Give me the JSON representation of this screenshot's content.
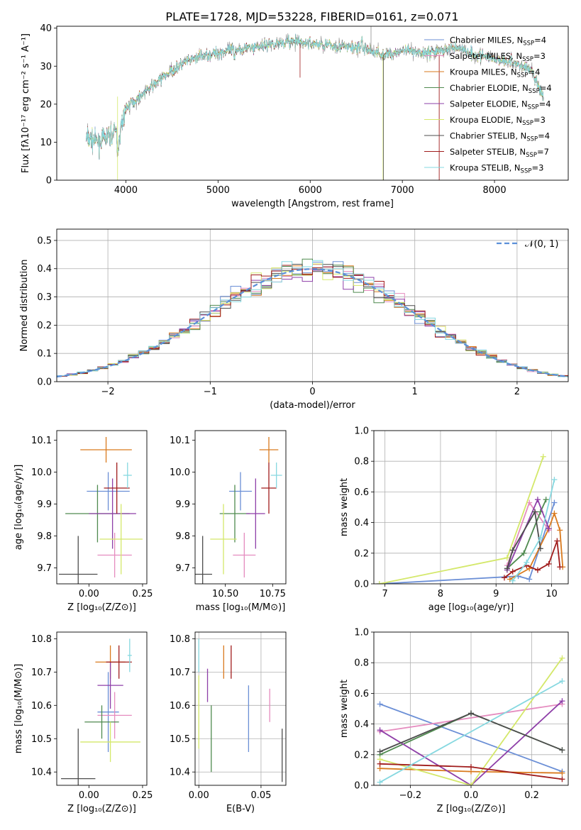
{
  "page_title": "PLATE=1728, MJD=53228, FIBERID=0161, z=0.071",
  "palette": {
    "chabrier_miles": "#6b8fd6",
    "salpeter_miles": "#e58cbf",
    "kroupa_miles": "#d97a1e",
    "chabrier_elodie": "#4f8a4f",
    "salpeter_elodie": "#8e3fa8",
    "kroupa_elodie": "#d4e86a",
    "chabrier_stelib": "#4d4d4d",
    "salpeter_stelib": "#a01c1c",
    "kroupa_stelib": "#86d8e0",
    "spectrum_gray": "#8c8c8c"
  },
  "chart_data": [
    {
      "id": "spectrum",
      "type": "line",
      "title": "PLATE=1728, MJD=53228, FIBERID=0161, z=0.071",
      "xlabel": "wavelength [Angstrom, rest frame]",
      "ylabel": "Flux [fλ10⁻¹⁷ erg cm⁻² s⁻¹ A⁻¹]",
      "xlim": [
        3250,
        8800
      ],
      "ylim": [
        0,
        40.5
      ],
      "xticks": [
        4000,
        5000,
        6000,
        7000,
        8000
      ],
      "yticks": [
        0,
        10,
        20,
        30,
        40
      ],
      "continuum_x": [
        3570,
        3700,
        3850,
        3950,
        4000,
        4100,
        4200,
        4400,
        4600,
        4800,
        5000,
        5200,
        5400,
        5600,
        5800,
        6000,
        6200,
        6400,
        6600,
        6800,
        7000,
        7200,
        7400,
        7600,
        7800,
        8000,
        8200,
        8400,
        8530
      ],
      "continuum_y": [
        11,
        10,
        12,
        14,
        19,
        21,
        23,
        27,
        30.5,
        32.5,
        33.5,
        34.5,
        35,
        36,
        36.5,
        36,
        35.5,
        35,
        34.5,
        33,
        34,
        33.5,
        34,
        35,
        33,
        32,
        31,
        29,
        22
      ],
      "legend": {
        "placement": "top-right",
        "entries": [
          {
            "label": "Chabrier MILES, N",
            "sub": "SSP",
            "suffix": "=4",
            "color": "chabrier_miles"
          },
          {
            "label": "Salpeter MILES, N",
            "sub": "SSP",
            "suffix": "=3",
            "color": "salpeter_miles"
          },
          {
            "label": "Kroupa MILES, N",
            "sub": "SSP",
            "suffix": "=4",
            "color": "kroupa_miles"
          },
          {
            "label": "Chabrier ELODIE, N",
            "sub": "SSP",
            "suffix": "=4",
            "color": "chabrier_elodie"
          },
          {
            "label": "Salpeter ELODIE, N",
            "sub": "SSP",
            "suffix": "=4",
            "color": "salpeter_elodie"
          },
          {
            "label": "Kroupa ELODIE, N",
            "sub": "SSP",
            "suffix": "=3",
            "color": "kroupa_elodie"
          },
          {
            "label": "Chabrier STELIB, N",
            "sub": "SSP",
            "suffix": "=4",
            "color": "chabrier_stelib"
          },
          {
            "label": "Salpeter STELIB, N",
            "sub": "SSP",
            "suffix": "=7",
            "color": "salpeter_stelib"
          },
          {
            "label": "Kroupa STELIB, N",
            "sub": "SSP",
            "suffix": "=3",
            "color": "kroupa_stelib"
          }
        ]
      }
    },
    {
      "id": "residuals",
      "type": "line",
      "xlabel": "(data-model)/error",
      "ylabel": "Normed distribution",
      "xlim": [
        -2.5,
        2.5
      ],
      "ylim": [
        0,
        0.54
      ],
      "xticks": [
        -2,
        -1,
        0,
        1,
        2
      ],
      "xtick_labels": [
        "−2",
        "−1",
        "0",
        "1",
        "2"
      ],
      "yticks": [
        0,
        0.1,
        0.2,
        0.3,
        0.4,
        0.5
      ],
      "ytick_labels": [
        "0.0",
        "0.1",
        "0.2",
        "0.3",
        "0.4",
        "0.5"
      ],
      "grid": true,
      "bin_width": 0.1,
      "gaussian_label": "𝒩(0, 1)",
      "legend_placement": "top-right"
    },
    {
      "id": "age-vs-z",
      "type": "scatter",
      "xlabel": "Z [log₁₀(Z/Z⊙)]",
      "ylabel": "age  [log₁₀(age/yr)]",
      "xlim": [
        -0.15,
        0.27
      ],
      "ylim": [
        9.65,
        10.13
      ],
      "xticks": [
        0,
        0.25
      ],
      "xtick_labels": [
        "0.00",
        "0.25"
      ],
      "yticks": [
        9.7,
        9.8,
        9.9,
        10.0,
        10.1
      ],
      "ytick_labels": [
        "9.7",
        "9.8",
        "9.9",
        "10.0",
        "10.1"
      ],
      "points": [
        {
          "color": "chabrier_miles",
          "x": 0.09,
          "xerr": 0.1,
          "y": 9.94,
          "yerr": 0.06
        },
        {
          "color": "salpeter_miles",
          "x": 0.12,
          "xerr": 0.08,
          "y": 9.74,
          "yerr": 0.07
        },
        {
          "color": "kroupa_miles",
          "x": 0.08,
          "xerr": 0.12,
          "y": 10.07,
          "yerr": 0.04
        },
        {
          "color": "chabrier_elodie",
          "x": 0.04,
          "xerr": 0.15,
          "y": 9.87,
          "yerr": 0.09
        },
        {
          "color": "salpeter_elodie",
          "x": 0.11,
          "xerr": 0.11,
          "y": 9.87,
          "yerr": 0.11
        },
        {
          "color": "kroupa_elodie",
          "x": 0.15,
          "xerr": 0.1,
          "y": 9.79,
          "yerr": 0.11
        },
        {
          "color": "chabrier_stelib",
          "x": -0.05,
          "xerr": 0.09,
          "y": 9.68,
          "yerr": 0.12
        },
        {
          "color": "salpeter_stelib",
          "x": 0.13,
          "xerr": 0.06,
          "y": 9.95,
          "yerr": 0.08
        },
        {
          "color": "kroupa_stelib",
          "x": 0.18,
          "xerr": 0.02,
          "y": 9.99,
          "yerr": 0.04
        }
      ]
    },
    {
      "id": "age-vs-mass",
      "type": "scatter",
      "xlabel": "mass [log₁₀(M/M⊙)]",
      "ylabel": "",
      "xlim": [
        10.34,
        10.82
      ],
      "ylim": [
        9.65,
        10.13
      ],
      "xticks": [
        10.5,
        10.75
      ],
      "xtick_labels": [
        "10.50",
        "10.75"
      ],
      "yticks": [
        9.7,
        9.8,
        9.9,
        10.0,
        10.1
      ],
      "ytick_labels": [
        "9.7",
        "9.8",
        "9.9",
        "10.0",
        "10.1"
      ],
      "points": [
        {
          "color": "chabrier_miles",
          "x": 10.58,
          "xerr": 0.06,
          "y": 9.94,
          "yerr": 0.06
        },
        {
          "color": "salpeter_miles",
          "x": 10.6,
          "xerr": 0.06,
          "y": 9.74,
          "yerr": 0.07
        },
        {
          "color": "kroupa_miles",
          "x": 10.73,
          "xerr": 0.05,
          "y": 10.07,
          "yerr": 0.04
        },
        {
          "color": "chabrier_elodie",
          "x": 10.55,
          "xerr": 0.08,
          "y": 9.87,
          "yerr": 0.09
        },
        {
          "color": "salpeter_elodie",
          "x": 10.66,
          "xerr": 0.05,
          "y": 9.87,
          "yerr": 0.11
        },
        {
          "color": "kroupa_elodie",
          "x": 10.49,
          "xerr": 0.07,
          "y": 9.79,
          "yerr": 0.11
        },
        {
          "color": "chabrier_stelib",
          "x": 10.38,
          "xerr": 0.05,
          "y": 9.68,
          "yerr": 0.12
        },
        {
          "color": "salpeter_stelib",
          "x": 10.73,
          "xerr": 0.04,
          "y": 9.95,
          "yerr": 0.08
        },
        {
          "color": "kroupa_stelib",
          "x": 10.77,
          "xerr": 0.03,
          "y": 9.99,
          "yerr": 0.04
        }
      ]
    },
    {
      "id": "weight-vs-age",
      "type": "line",
      "xlabel": "age  [log₁₀(age/yr)]",
      "ylabel": "mass weight",
      "xlim": [
        6.8,
        10.3
      ],
      "ylim": [
        0,
        1
      ],
      "xticks": [
        7,
        8,
        9,
        10
      ],
      "xtick_labels": [
        "7",
        "8",
        "9",
        "10"
      ],
      "yticks": [
        0,
        0.2,
        0.4,
        0.6,
        0.8,
        1.0
      ],
      "ytick_labels": [
        "0.0",
        "0.2",
        "0.4",
        "0.6",
        "0.8",
        "1.0"
      ],
      "grid": true,
      "series": [
        {
          "color": "chabrier_miles",
          "x": [
            6.9,
            9.4,
            9.6,
            10.05
          ],
          "y": [
            0.0,
            0.05,
            0.03,
            0.53
          ]
        },
        {
          "color": "salpeter_miles",
          "x": [
            9.2,
            9.6,
            9.95
          ],
          "y": [
            0.12,
            0.53,
            0.35
          ]
        },
        {
          "color": "kroupa_miles",
          "x": [
            9.25,
            9.6,
            9.95,
            10.05,
            10.15,
            10.2
          ],
          "y": [
            0.03,
            0.1,
            0.36,
            0.46,
            0.35,
            0.11
          ]
        },
        {
          "color": "chabrier_elodie",
          "x": [
            9.2,
            9.5,
            9.8,
            9.9
          ],
          "y": [
            0.1,
            0.2,
            0.47,
            0.55
          ]
        },
        {
          "color": "salpeter_elodie",
          "x": [
            9.2,
            9.75,
            9.95
          ],
          "y": [
            0.09,
            0.55,
            0.36
          ]
        },
        {
          "color": "kroupa_elodie",
          "x": [
            6.9,
            9.2,
            9.85
          ],
          "y": [
            0.0,
            0.17,
            0.83
          ]
        },
        {
          "color": "chabrier_stelib",
          "x": [
            9.2,
            9.3,
            9.7,
            9.8
          ],
          "y": [
            0.1,
            0.22,
            0.47,
            0.23
          ]
        },
        {
          "color": "salpeter_stelib",
          "x": [
            9.15,
            9.3,
            9.55,
            9.75,
            9.95,
            10.1,
            10.15
          ],
          "y": [
            0.04,
            0.08,
            0.12,
            0.09,
            0.13,
            0.28,
            0.11
          ]
        },
        {
          "color": "kroupa_stelib",
          "x": [
            9.3,
            9.55,
            9.8,
            10.05
          ],
          "y": [
            0.02,
            0.14,
            0.3,
            0.68
          ]
        }
      ]
    },
    {
      "id": "mass-vs-z",
      "type": "scatter",
      "xlabel": "Z [log₁₀(Z/Z⊙)]",
      "ylabel": "mass [log₁₀(M/M⊙)]",
      "xlim": [
        -0.15,
        0.27
      ],
      "ylim": [
        10.36,
        10.82
      ],
      "xticks": [
        0,
        0.25
      ],
      "xtick_labels": [
        "0.00",
        "0.25"
      ],
      "yticks": [
        10.4,
        10.5,
        10.6,
        10.7,
        10.8
      ],
      "ytick_labels": [
        "10.4",
        "10.5",
        "10.6",
        "10.7",
        "10.8"
      ],
      "points": [
        {
          "color": "chabrier_miles",
          "x": 0.09,
          "xerr": 0.05,
          "y": 10.58,
          "yerr": 0.12
        },
        {
          "color": "salpeter_miles",
          "x": 0.12,
          "xerr": 0.08,
          "y": 10.57,
          "yerr": 0.07
        },
        {
          "color": "kroupa_miles",
          "x": 0.1,
          "xerr": 0.07,
          "y": 10.73,
          "yerr": 0.05
        },
        {
          "color": "chabrier_elodie",
          "x": 0.06,
          "xerr": 0.08,
          "y": 10.55,
          "yerr": 0.05
        },
        {
          "color": "salpeter_elodie",
          "x": 0.1,
          "xerr": 0.06,
          "y": 10.66,
          "yerr": 0.07
        },
        {
          "color": "kroupa_elodie",
          "x": 0.1,
          "xerr": 0.14,
          "y": 10.49,
          "yerr": 0.06
        },
        {
          "color": "chabrier_stelib",
          "x": -0.05,
          "xerr": 0.08,
          "y": 10.38,
          "yerr": 0.15
        },
        {
          "color": "salpeter_stelib",
          "x": 0.14,
          "xerr": 0.06,
          "y": 10.73,
          "yerr": 0.05
        },
        {
          "color": "kroupa_stelib",
          "x": 0.19,
          "xerr": 0.01,
          "y": 10.75,
          "yerr": 0.05
        }
      ]
    },
    {
      "id": "mass-vs-ebv",
      "type": "scatter",
      "xlabel": "E(B-V)",
      "ylabel": "",
      "xlim": [
        -0.003,
        0.07
      ],
      "ylim": [
        10.36,
        10.82
      ],
      "xticks": [
        0,
        0.05
      ],
      "xtick_labels": [
        "0.00",
        "0.05"
      ],
      "yticks": [
        10.4,
        10.5,
        10.6,
        10.7,
        10.8
      ],
      "ytick_labels": [
        "10.4",
        "10.5",
        "10.6",
        "10.7",
        "10.8"
      ],
      "grid": true,
      "points": [
        {
          "color": "kroupa_elodie",
          "x": 0.0,
          "y": 10.58,
          "yerr": 0.11
        },
        {
          "color": "kroupa_stelib",
          "x": 0.0,
          "y": 10.75,
          "yerr": 0.05
        },
        {
          "color": "salpeter_elodie",
          "x": 0.007,
          "y": 10.66,
          "yerr": 0.05
        },
        {
          "color": "chabrier_elodie",
          "x": 0.01,
          "y": 10.5,
          "yerr": 0.1
        },
        {
          "color": "kroupa_miles",
          "x": 0.02,
          "y": 10.73,
          "yerr": 0.05
        },
        {
          "color": "salpeter_stelib",
          "x": 0.026,
          "y": 10.73,
          "yerr": 0.05
        },
        {
          "color": "chabrier_miles",
          "x": 0.04,
          "y": 10.56,
          "yerr": 0.1
        },
        {
          "color": "salpeter_miles",
          "x": 0.057,
          "y": 10.6,
          "yerr": 0.05
        },
        {
          "color": "chabrier_stelib",
          "x": 0.067,
          "y": 10.45,
          "yerr": 0.08
        }
      ]
    },
    {
      "id": "weight-vs-z",
      "type": "line",
      "xlabel": "Z [log₁₀(Z/Z⊙)]",
      "ylabel": "mass weight",
      "xlim": [
        -0.32,
        0.32
      ],
      "ylim": [
        0,
        1
      ],
      "xticks": [
        -0.2,
        0,
        0.2
      ],
      "xtick_labels": [
        "−0.2",
        "0.0",
        "0.2"
      ],
      "yticks": [
        0,
        0.2,
        0.4,
        0.6,
        0.8,
        1.0
      ],
      "ytick_labels": [
        "0.0",
        "0.2",
        "0.4",
        "0.6",
        "0.8",
        "1.0"
      ],
      "grid": true,
      "series": [
        {
          "color": "chabrier_miles",
          "x": [
            -0.3,
            0.3
          ],
          "y": [
            0.53,
            0.09
          ]
        },
        {
          "color": "salpeter_miles",
          "x": [
            -0.3,
            0.3
          ],
          "y": [
            0.35,
            0.53
          ]
        },
        {
          "color": "kroupa_miles",
          "x": [
            -0.3,
            0.0,
            0.3
          ],
          "y": [
            0.11,
            0.09,
            0.08
          ]
        },
        {
          "color": "chabrier_elodie",
          "x": [
            -0.3,
            0.0,
            0.3
          ],
          "y": [
            0.2,
            0.47,
            0.23
          ]
        },
        {
          "color": "salpeter_elodie",
          "x": [
            -0.3,
            0.0,
            0.3
          ],
          "y": [
            0.36,
            0.0,
            0.55
          ]
        },
        {
          "color": "kroupa_elodie",
          "x": [
            -0.3,
            0.0,
            0.3
          ],
          "y": [
            0.17,
            0.0,
            0.83
          ]
        },
        {
          "color": "chabrier_stelib",
          "x": [
            -0.3,
            0.0,
            0.3
          ],
          "y": [
            0.22,
            0.47,
            0.23
          ]
        },
        {
          "color": "salpeter_stelib",
          "x": [
            -0.3,
            0.0,
            0.3
          ],
          "y": [
            0.14,
            0.12,
            0.04
          ]
        },
        {
          "color": "kroupa_stelib",
          "x": [
            -0.3,
            0.3
          ],
          "y": [
            0.02,
            0.68
          ]
        }
      ]
    }
  ]
}
